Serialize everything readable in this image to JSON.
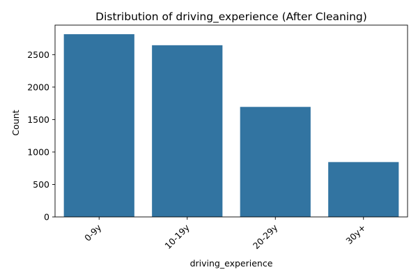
{
  "chart_data": {
    "type": "bar",
    "title": "Distribution of driving_experience (After Cleaning)",
    "xlabel": "driving_experience",
    "ylabel": "Count",
    "categories": [
      "0-9y",
      "10-19y",
      "20-29y",
      "30y+"
    ],
    "values": [
      2815,
      2645,
      1695,
      845
    ],
    "ylim": [
      0,
      2955
    ],
    "yticks": [
      0,
      500,
      1000,
      1500,
      2000,
      2500
    ],
    "bar_color": "#3274a1",
    "grid": false,
    "xtick_rotation": "45°"
  }
}
